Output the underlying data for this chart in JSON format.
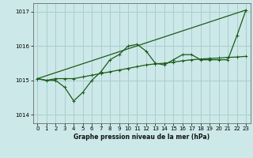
{
  "bg_color": "#cce8e8",
  "grid_color": "#aacece",
  "line_color": "#1a5c1a",
  "xlabel": "Graphe pression niveau de la mer (hPa)",
  "ylim": [
    1013.75,
    1017.25
  ],
  "yticks": [
    1014,
    1015,
    1016,
    1017
  ],
  "xlim": [
    -0.5,
    23.5
  ],
  "xticks": [
    0,
    1,
    2,
    3,
    4,
    5,
    6,
    7,
    8,
    9,
    10,
    11,
    12,
    13,
    14,
    15,
    16,
    17,
    18,
    19,
    20,
    21,
    22,
    23
  ],
  "zigzag_x": [
    0,
    1,
    2,
    3,
    4,
    5,
    6,
    7,
    8,
    9,
    10,
    11,
    12,
    13,
    14,
    15,
    16,
    17,
    18,
    19,
    20,
    21,
    22,
    23
  ],
  "zigzag_y": [
    1015.05,
    1015.0,
    1015.0,
    1014.8,
    1014.4,
    1014.65,
    1015.0,
    1015.25,
    1015.6,
    1015.75,
    1016.0,
    1016.05,
    1015.85,
    1015.5,
    1015.45,
    1015.6,
    1015.75,
    1015.75,
    1015.6,
    1015.6,
    1015.6,
    1015.6,
    1016.3,
    1017.05
  ],
  "flat_x": [
    0,
    1,
    2,
    3,
    4,
    5,
    6,
    7,
    8,
    9,
    10,
    11,
    12,
    13,
    14,
    15,
    16,
    17,
    18,
    19,
    20,
    21,
    22,
    23
  ],
  "flat_y": [
    1015.05,
    1015.0,
    1015.05,
    1015.05,
    1015.05,
    1015.1,
    1015.15,
    1015.2,
    1015.25,
    1015.3,
    1015.35,
    1015.4,
    1015.45,
    1015.48,
    1015.5,
    1015.53,
    1015.57,
    1015.6,
    1015.62,
    1015.64,
    1015.65,
    1015.67,
    1015.68,
    1015.7
  ],
  "trend_x": [
    0,
    23
  ],
  "trend_y": [
    1015.05,
    1017.05
  ]
}
